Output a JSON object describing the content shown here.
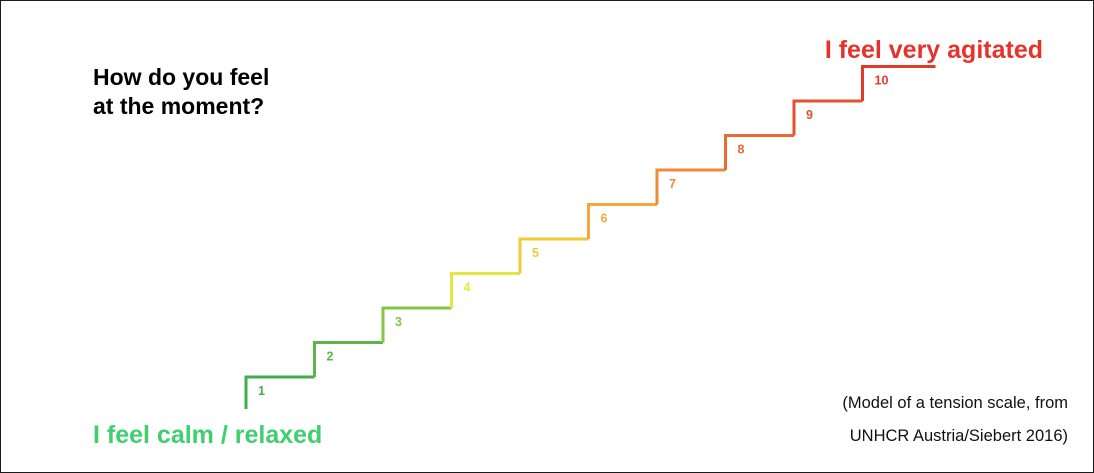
{
  "question": {
    "line1": "How do you feel",
    "line2": "at the moment?"
  },
  "label_high": "I feel very agitated",
  "label_low": "I feel calm / relaxed",
  "source": {
    "line1": "(Model of a tension scale, from",
    "line2": "UNHCR Austria/Siebert 2016)"
  },
  "scale": {
    "steps": [
      "1",
      "2",
      "3",
      "4",
      "5",
      "6",
      "7",
      "8",
      "9",
      "10"
    ],
    "colors": [
      "#3fae4a",
      "#5bb848",
      "#86c444",
      "#e3e83e",
      "#f5c83a",
      "#f3a83b",
      "#ee8a3a",
      "#ea6a34",
      "#e5502e",
      "#e23a29"
    ]
  },
  "colors": {
    "agitated": "#e5332a",
    "calm": "#3fcf6e"
  }
}
